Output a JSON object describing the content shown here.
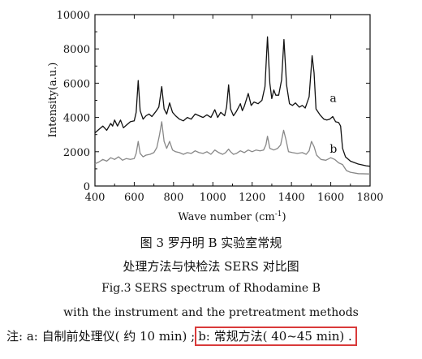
{
  "chart_data": {
    "type": "line",
    "xlabel": "Wave number (cm",
    "xlabel_sup": "-1",
    "xlabel_end": ")",
    "ylabel": "Intensity(a.u.)",
    "xlim": [
      400,
      1800
    ],
    "ylim": [
      0,
      10000
    ],
    "x_ticks": [
      "400",
      "600",
      "800",
      "1000",
      "1200",
      "1400",
      "1600",
      "1800"
    ],
    "y_ticks": [
      "0",
      "2000",
      "4000",
      "6000",
      "8000",
      "10000"
    ],
    "grid": false,
    "series": [
      {
        "name": "a",
        "color": "#111111",
        "points": [
          [
            400,
            3100
          ],
          [
            420,
            3300
          ],
          [
            440,
            3500
          ],
          [
            460,
            3250
          ],
          [
            480,
            3650
          ],
          [
            490,
            3500
          ],
          [
            500,
            3850
          ],
          [
            515,
            3500
          ],
          [
            530,
            3850
          ],
          [
            545,
            3400
          ],
          [
            560,
            3550
          ],
          [
            580,
            3750
          ],
          [
            600,
            3800
          ],
          [
            610,
            4300
          ],
          [
            620,
            6150
          ],
          [
            630,
            4400
          ],
          [
            645,
            3900
          ],
          [
            660,
            4100
          ],
          [
            675,
            4200
          ],
          [
            690,
            4050
          ],
          [
            710,
            4350
          ],
          [
            725,
            4600
          ],
          [
            740,
            5800
          ],
          [
            752,
            4500
          ],
          [
            765,
            4200
          ],
          [
            780,
            4850
          ],
          [
            795,
            4300
          ],
          [
            810,
            4100
          ],
          [
            830,
            3900
          ],
          [
            850,
            3800
          ],
          [
            870,
            4000
          ],
          [
            890,
            3900
          ],
          [
            910,
            4200
          ],
          [
            930,
            4100
          ],
          [
            950,
            4000
          ],
          [
            970,
            4150
          ],
          [
            990,
            4000
          ],
          [
            1010,
            4450
          ],
          [
            1025,
            4000
          ],
          [
            1040,
            4300
          ],
          [
            1060,
            4100
          ],
          [
            1070,
            4600
          ],
          [
            1080,
            5900
          ],
          [
            1090,
            4500
          ],
          [
            1105,
            4100
          ],
          [
            1120,
            4350
          ],
          [
            1140,
            4800
          ],
          [
            1150,
            4400
          ],
          [
            1160,
            4650
          ],
          [
            1180,
            5400
          ],
          [
            1195,
            4700
          ],
          [
            1210,
            4900
          ],
          [
            1230,
            4800
          ],
          [
            1250,
            5000
          ],
          [
            1265,
            5800
          ],
          [
            1278,
            8700
          ],
          [
            1290,
            6000
          ],
          [
            1300,
            5100
          ],
          [
            1310,
            5600
          ],
          [
            1320,
            5300
          ],
          [
            1335,
            5300
          ],
          [
            1350,
            6200
          ],
          [
            1362,
            8550
          ],
          [
            1375,
            5900
          ],
          [
            1390,
            4800
          ],
          [
            1405,
            4700
          ],
          [
            1420,
            4850
          ],
          [
            1440,
            4600
          ],
          [
            1455,
            4700
          ],
          [
            1470,
            4550
          ],
          [
            1490,
            5200
          ],
          [
            1505,
            7600
          ],
          [
            1515,
            6600
          ],
          [
            1525,
            4500
          ],
          [
            1545,
            4150
          ],
          [
            1565,
            3900
          ],
          [
            1580,
            3850
          ],
          [
            1595,
            3900
          ],
          [
            1610,
            4050
          ],
          [
            1625,
            3750
          ],
          [
            1640,
            3700
          ],
          [
            1650,
            3500
          ],
          [
            1660,
            2200
          ],
          [
            1675,
            1700
          ],
          [
            1700,
            1450
          ],
          [
            1740,
            1280
          ],
          [
            1780,
            1180
          ],
          [
            1800,
            1150
          ]
        ]
      },
      {
        "name": "b",
        "color": "#888888",
        "points": [
          [
            400,
            1300
          ],
          [
            420,
            1400
          ],
          [
            440,
            1550
          ],
          [
            460,
            1450
          ],
          [
            480,
            1650
          ],
          [
            500,
            1550
          ],
          [
            520,
            1700
          ],
          [
            540,
            1500
          ],
          [
            560,
            1600
          ],
          [
            580,
            1550
          ],
          [
            600,
            1600
          ],
          [
            610,
            1900
          ],
          [
            620,
            2600
          ],
          [
            630,
            1900
          ],
          [
            645,
            1700
          ],
          [
            660,
            1800
          ],
          [
            680,
            1850
          ],
          [
            700,
            1950
          ],
          [
            715,
            2250
          ],
          [
            728,
            2950
          ],
          [
            740,
            3750
          ],
          [
            752,
            2600
          ],
          [
            765,
            2200
          ],
          [
            780,
            2600
          ],
          [
            795,
            2100
          ],
          [
            810,
            2000
          ],
          [
            830,
            1950
          ],
          [
            850,
            1850
          ],
          [
            870,
            1950
          ],
          [
            890,
            1900
          ],
          [
            910,
            2050
          ],
          [
            930,
            1950
          ],
          [
            950,
            1900
          ],
          [
            970,
            2000
          ],
          [
            990,
            1850
          ],
          [
            1010,
            2100
          ],
          [
            1030,
            1950
          ],
          [
            1050,
            1850
          ],
          [
            1065,
            1950
          ],
          [
            1080,
            2150
          ],
          [
            1090,
            2000
          ],
          [
            1105,
            1850
          ],
          [
            1120,
            1900
          ],
          [
            1140,
            2050
          ],
          [
            1160,
            1950
          ],
          [
            1180,
            2100
          ],
          [
            1200,
            2000
          ],
          [
            1220,
            2100
          ],
          [
            1240,
            2050
          ],
          [
            1258,
            2100
          ],
          [
            1270,
            2400
          ],
          [
            1278,
            2900
          ],
          [
            1290,
            2200
          ],
          [
            1310,
            2100
          ],
          [
            1330,
            2200
          ],
          [
            1345,
            2400
          ],
          [
            1360,
            3250
          ],
          [
            1372,
            2700
          ],
          [
            1385,
            2000
          ],
          [
            1405,
            1950
          ],
          [
            1430,
            1900
          ],
          [
            1455,
            1950
          ],
          [
            1475,
            1850
          ],
          [
            1490,
            2050
          ],
          [
            1502,
            2600
          ],
          [
            1515,
            2300
          ],
          [
            1528,
            1800
          ],
          [
            1550,
            1550
          ],
          [
            1575,
            1500
          ],
          [
            1600,
            1650
          ],
          [
            1620,
            1550
          ],
          [
            1640,
            1350
          ],
          [
            1660,
            1250
          ],
          [
            1680,
            900
          ],
          [
            1700,
            800
          ],
          [
            1740,
            720
          ],
          [
            1800,
            700
          ]
        ]
      }
    ],
    "annotations": [
      {
        "text": "a",
        "x": 1595,
        "y": 4900
      },
      {
        "text": "b",
        "x": 1595,
        "y": 1950
      }
    ]
  },
  "captions": {
    "line1": "图 3    罗丹明 B 实验室常规",
    "line2": "处理方法与快检法 SERS 对比图",
    "line3": "Fig.3    SERS spectrum of Rhodamine B",
    "line4": "with the instrument and the pretreatment methods"
  },
  "note": {
    "part_a": "注: a: 自制前处理仪( 约 10 min) ;",
    "part_b": "b: 常规方法( 40~45 min) ."
  }
}
